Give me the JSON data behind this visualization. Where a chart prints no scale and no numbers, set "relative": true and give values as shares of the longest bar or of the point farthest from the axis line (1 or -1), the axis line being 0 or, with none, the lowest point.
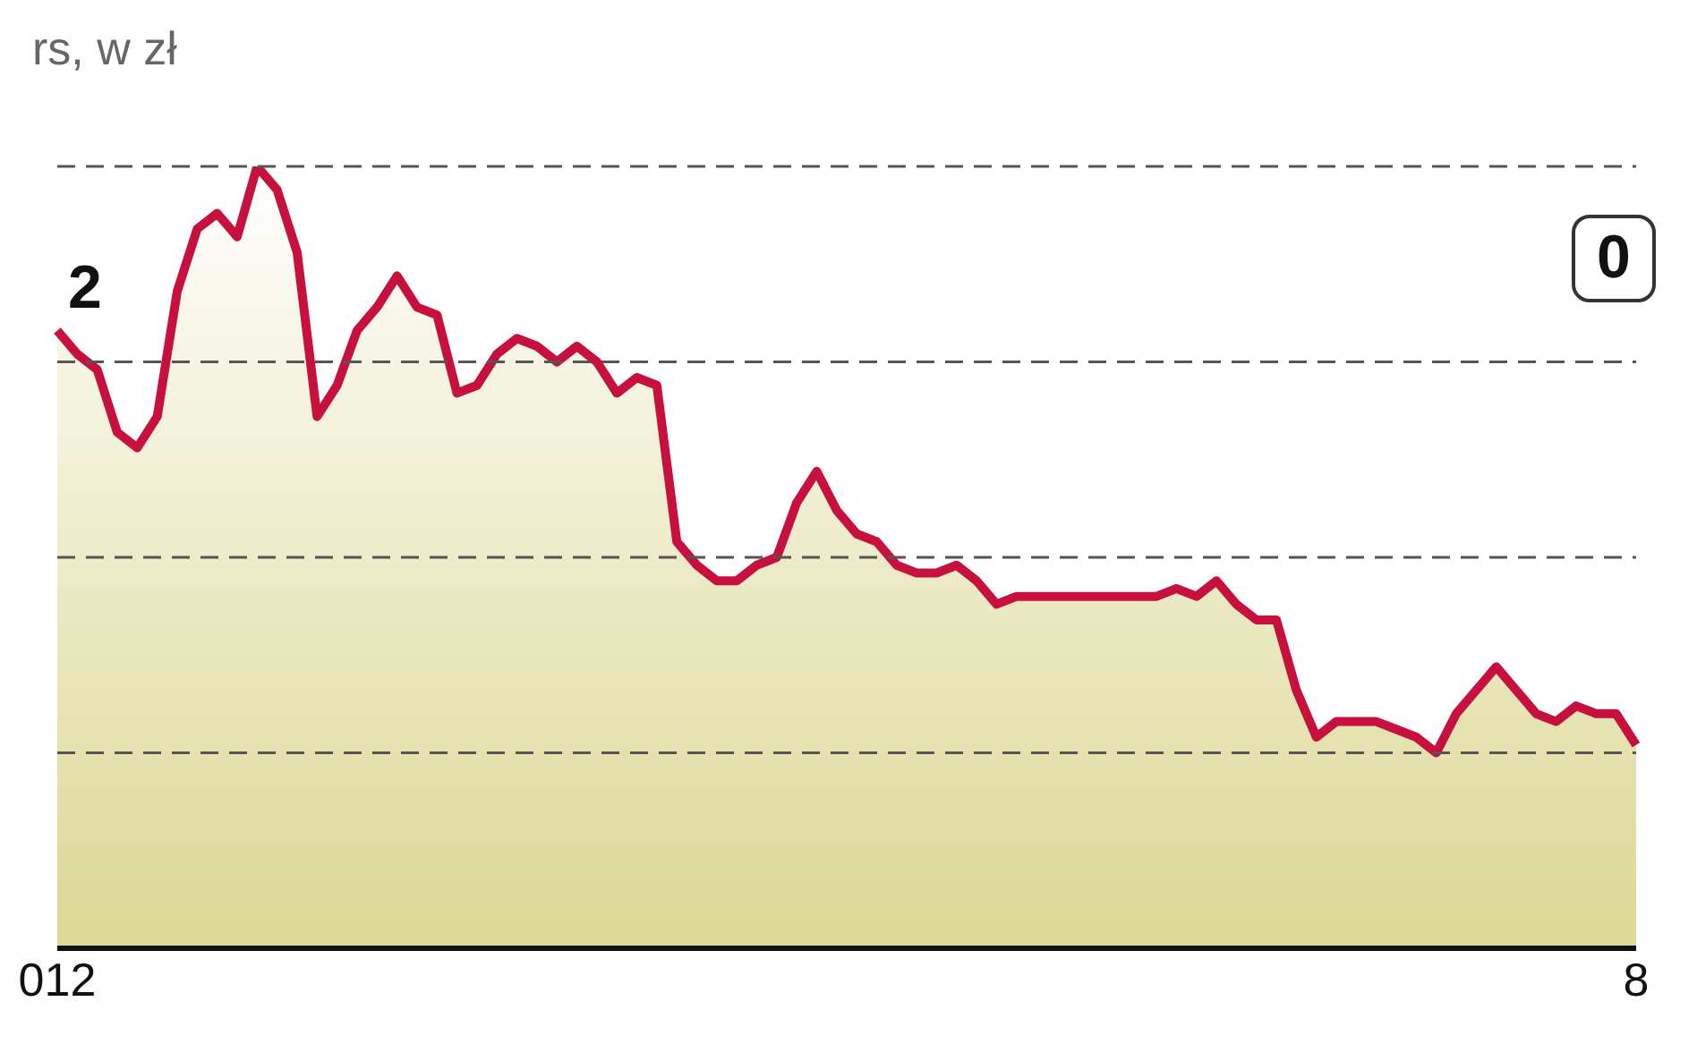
{
  "chart_data": {
    "type": "area",
    "title": "rs, w zł",
    "annotations": [
      "2",
      "0"
    ],
    "relative": true,
    "line_style": "solid",
    "ref_lines": [
      {
        "axis": "y",
        "value": 0.25,
        "color": "#555555",
        "line_style": "dashed"
      },
      {
        "axis": "y",
        "value": 0.5,
        "color": "#555555",
        "line_style": "dashed"
      },
      {
        "axis": "y",
        "value": 0.75,
        "color": "#555555",
        "line_style": "dashed"
      },
      {
        "axis": "y",
        "value": 1.0,
        "color": "#555555",
        "line_style": "dashed"
      }
    ],
    "categories": [
      "012",
      null,
      null,
      null,
      null,
      null,
      null,
      null,
      null,
      null,
      null,
      null,
      null,
      null,
      null,
      null,
      null,
      null,
      null,
      null,
      null,
      null,
      null,
      null,
      null,
      null,
      null,
      null,
      null,
      null,
      null,
      null,
      null,
      null,
      null,
      null,
      null,
      null,
      null,
      null,
      null,
      null,
      null,
      null,
      null,
      null,
      null,
      null,
      null,
      null,
      null,
      null,
      null,
      null,
      null,
      null,
      null,
      null,
      null,
      null,
      null,
      null,
      null,
      null,
      null,
      null,
      null,
      null,
      null,
      null,
      null,
      null,
      null,
      null,
      null,
      null,
      null,
      null,
      null,
      "8"
    ],
    "series": [
      {
        "color": "#c8103e",
        "values": [
          0.79,
          0.76,
          0.74,
          0.66,
          0.64,
          0.68,
          0.84,
          0.92,
          0.94,
          0.91,
          1.0,
          0.97,
          0.89,
          0.68,
          0.72,
          0.79,
          0.82,
          0.86,
          0.82,
          0.81,
          0.71,
          0.72,
          0.76,
          0.78,
          0.77,
          0.75,
          0.77,
          0.75,
          0.71,
          0.73,
          0.72,
          0.52,
          0.49,
          0.47,
          0.47,
          0.49,
          0.5,
          0.57,
          0.61,
          0.56,
          0.53,
          0.52,
          0.49,
          0.48,
          0.48,
          0.49,
          0.47,
          0.44,
          0.45,
          0.45,
          0.45,
          0.45,
          0.45,
          0.45,
          0.45,
          0.45,
          0.46,
          0.45,
          0.47,
          0.44,
          0.42,
          0.42,
          0.33,
          0.27,
          0.29,
          0.29,
          0.29,
          0.28,
          0.27,
          0.25,
          0.3,
          0.33,
          0.36,
          0.33,
          0.3,
          0.29,
          0.31,
          0.3,
          0.3,
          0.26
        ]
      }
    ]
  }
}
